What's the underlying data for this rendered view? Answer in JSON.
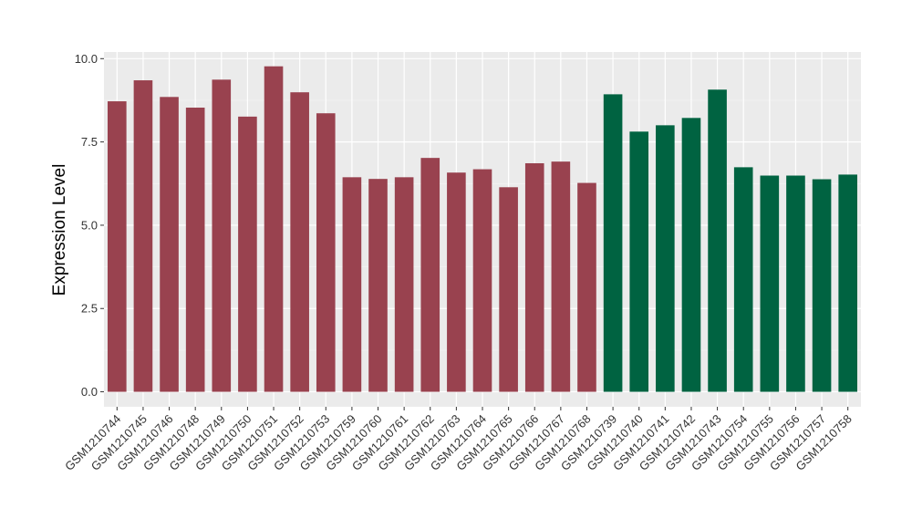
{
  "chart_data": {
    "type": "bar",
    "title": "",
    "xlabel": "",
    "ylabel": "Expression Level",
    "ylim": [
      -0.45,
      10.2
    ],
    "yticks": [
      "0.0",
      "2.5",
      "5.0",
      "7.5",
      "10.0"
    ],
    "grid": true,
    "panel_color": "#ebebeb",
    "categories": [
      "GSM1210744",
      "GSM1210745",
      "GSM1210746",
      "GSM1210748",
      "GSM1210749",
      "GSM1210750",
      "GSM1210751",
      "GSM1210752",
      "GSM1210753",
      "GSM1210759",
      "GSM1210760",
      "GSM1210761",
      "GSM1210762",
      "GSM1210763",
      "GSM1210764",
      "GSM1210765",
      "GSM1210766",
      "GSM1210767",
      "GSM1210768",
      "GSM1210739",
      "GSM1210740",
      "GSM1210741",
      "GSM1210742",
      "GSM1210743",
      "GSM1210754",
      "GSM1210755",
      "GSM1210756",
      "GSM1210757",
      "GSM1210758"
    ],
    "values": [
      8.72,
      9.35,
      8.85,
      8.53,
      9.37,
      8.26,
      9.77,
      8.99,
      8.36,
      6.44,
      6.39,
      6.44,
      7.02,
      6.58,
      6.68,
      6.14,
      6.86,
      6.91,
      6.27,
      8.93,
      7.81,
      8.0,
      8.22,
      9.07,
      6.74,
      6.49,
      6.49,
      6.38,
      6.52
    ],
    "colors": [
      "#99424f",
      "#99424f",
      "#99424f",
      "#99424f",
      "#99424f",
      "#99424f",
      "#99424f",
      "#99424f",
      "#99424f",
      "#99424f",
      "#99424f",
      "#99424f",
      "#99424f",
      "#99424f",
      "#99424f",
      "#99424f",
      "#99424f",
      "#99424f",
      "#99424f",
      "#006341",
      "#006341",
      "#006341",
      "#006341",
      "#006341",
      "#006341",
      "#006341",
      "#006341",
      "#006341",
      "#006341"
    ]
  }
}
